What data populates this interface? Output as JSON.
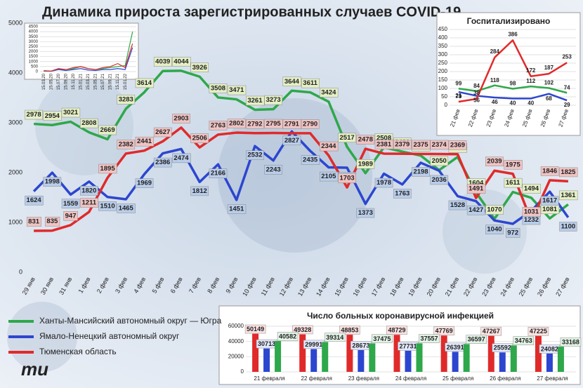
{
  "chart_data": [
    {
      "type": "line",
      "title": "Динамика прироста зарегистрированных случаев COVID-19",
      "categories": [
        "29 янв",
        "30 янв",
        "31 янв",
        "1 фев",
        "2 фев",
        "3 фев",
        "4 фев",
        "5 фев",
        "6 фев",
        "7 фев",
        "8 фев",
        "9 фев",
        "10 фев",
        "11 фев",
        "12 фев",
        "13 фев",
        "14 фев",
        "15 фев",
        "16 фев",
        "17 фев",
        "18 фев",
        "19 фев",
        "20 фев",
        "21 фев",
        "22 фев",
        "23 фев",
        "24 фев",
        "25 фев",
        "26 фев",
        "27 фев"
      ],
      "series": [
        {
          "name": "Ханты-Мансийский автономный округ — Югра",
          "color": "#2ea84a",
          "values": [
            2978,
            2954,
            3021,
            2808,
            2669,
            3283,
            3614,
            4039,
            4044,
            3926,
            3508,
            3471,
            3261,
            3273,
            3644,
            3611,
            3424,
            2517,
            1989,
            2508,
            2422,
            2341,
            2050,
            2314,
            1604,
            1070,
            1611,
            1494,
            1081,
            1361
          ]
        },
        {
          "name": "Ямало-Ненецкий автономный округ",
          "color": "#2c46d0",
          "values": [
            1624,
            1998,
            1559,
            1820,
            1510,
            1465,
            1969,
            2386,
            2474,
            1812,
            2166,
            1451,
            2532,
            2243,
            2827,
            2435,
            2105,
            2098,
            1373,
            1978,
            1763,
            2198,
            2036,
            1528,
            1427,
            1040,
            972,
            1232,
            1617,
            1100
          ]
        },
        {
          "name": "Тюменская область",
          "color": "#e02a2a",
          "values": [
            831,
            835,
            947,
            1211,
            1895,
            2382,
            2441,
            2627,
            2903,
            2506,
            2763,
            2802,
            2792,
            2795,
            2791,
            2790,
            2344,
            1703,
            2478,
            2381,
            2379,
            2375,
            2374,
            2369,
            1491,
            2039,
            1975,
            1031,
            1846,
            1825
          ]
        }
      ],
      "ylim": [
        0,
        5000
      ],
      "yticks": [
        0,
        1000,
        2000,
        3000,
        4000,
        5000
      ],
      "grid": false
    },
    {
      "type": "line",
      "categories": [
        "15.03.20",
        "15.05.20",
        "15.07.20",
        "15.09.20",
        "15.11.20",
        "15.01.21",
        "15.03.21",
        "15.05.21",
        "15.07.21",
        "15.09.21",
        "15.11.21",
        "15.01.22",
        null
      ],
      "series": [
        {
          "color": "#2ea84a",
          "values": [
            100,
            50,
            300,
            100,
            300,
            500,
            300,
            200,
            300,
            400,
            500,
            600,
            4000
          ]
        },
        {
          "color": "#2c46d0",
          "values": [
            50,
            30,
            200,
            100,
            200,
            300,
            150,
            100,
            200,
            200,
            300,
            200,
            2400
          ]
        },
        {
          "color": "#e02a2a",
          "values": [
            50,
            50,
            300,
            200,
            400,
            500,
            300,
            200,
            400,
            500,
            800,
            400,
            2800
          ]
        }
      ],
      "ylim": [
        0,
        4500
      ],
      "yticks": [
        0,
        500,
        1000,
        1500,
        2000,
        2500,
        3000,
        3500,
        4000,
        4500
      ],
      "grid": true
    },
    {
      "type": "line",
      "title": "Госпитализировано",
      "categories": [
        "21 фев",
        "22 фев",
        "23 фев",
        "24 фев",
        "25 фев",
        "26 фев",
        "27 фев"
      ],
      "series": [
        {
          "color": "#2ea84a",
          "values": [
            99,
            84,
            118,
            98,
            112,
            102,
            74
          ]
        },
        {
          "color": "#2c46d0",
          "values": [
            79,
            56,
            46,
            40,
            40,
            68,
            29
          ]
        },
        {
          "color": "#e02a2a",
          "values": [
            21,
            38,
            284,
            386,
            172,
            187,
            253
          ]
        }
      ],
      "ylim": [
        0,
        450
      ],
      "yticks": [
        0,
        50,
        100,
        150,
        200,
        250,
        300,
        350,
        400,
        450
      ],
      "grid": true
    },
    {
      "type": "bar",
      "title": "Число больных коронавирусной инфекцией",
      "categories": [
        "21 февраля",
        "22 февраля",
        "23 февраля",
        "24 февраля",
        "25 февраля",
        "26 февраля",
        "27 февраля"
      ],
      "series": [
        {
          "color": "#e02a2a",
          "values": [
            50149,
            49328,
            48853,
            48729,
            47769,
            47267,
            47225
          ]
        },
        {
          "color": "#2c46d0",
          "values": [
            30713,
            29991,
            28673,
            27731,
            26391,
            25592,
            24082
          ]
        },
        {
          "color": "#2ea84a",
          "values": [
            40582,
            39314,
            37475,
            37557,
            36597,
            34763,
            33168
          ]
        }
      ],
      "ylim": [
        0,
        60000
      ],
      "yticks": [
        0,
        20000,
        40000,
        60000
      ],
      "grid": true
    }
  ]
}
